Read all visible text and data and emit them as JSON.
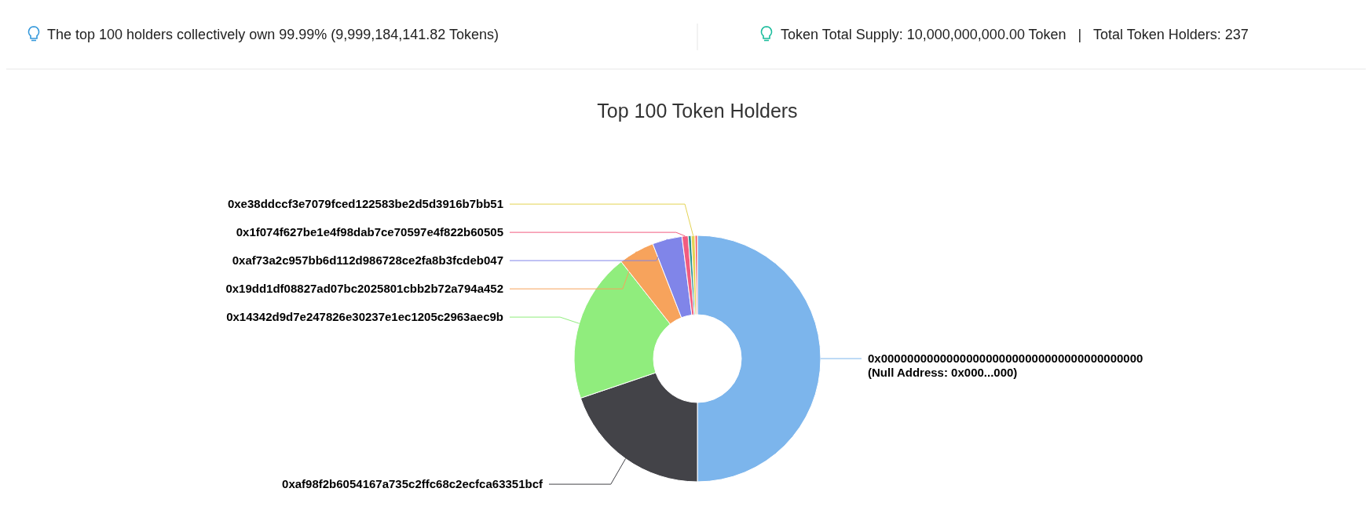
{
  "chart_data": {
    "type": "donut",
    "title": "Top 100 Token Holders",
    "annotations": [
      "The top 100 holders collectively own 99.99% (9,999,184,141.82 Tokens)",
      "Token Total Supply: 10,000,000,000.00 Token   |   Total Token Holders: 237"
    ],
    "categories": [
      "0x0000000000000000000000000000000000000000\n(Null Address: 0x000...000)",
      "0xaf98f2b6054167a735c2ffc68c2ecfca63351bcf",
      "0x14342d9d7e247826e30237e1ec1205c2963aec9b",
      "0x19dd1df08827ad07bc2025801cbb2b72a794a452",
      "0xaf73a2c957bb6d112d986728ce2fa8b3fcdeb047",
      "0x1f074f627be1e4f98dab7ce70597e4f822b60505",
      null,
      "0xe38ddccf3e7079fced122583be2d5d3916b7bb51",
      null
    ],
    "values": [
      50,
      19.8,
      19.6,
      4.7,
      3.9,
      0.8,
      0.4,
      0.5,
      0.3
    ],
    "colors": [
      "#7cb5ec",
      "#434348",
      "#90ed7d",
      "#f7a35c",
      "#8085e9",
      "#f15c80",
      "#2b908f",
      "#e4d354",
      "#f45b5b"
    ]
  }
}
